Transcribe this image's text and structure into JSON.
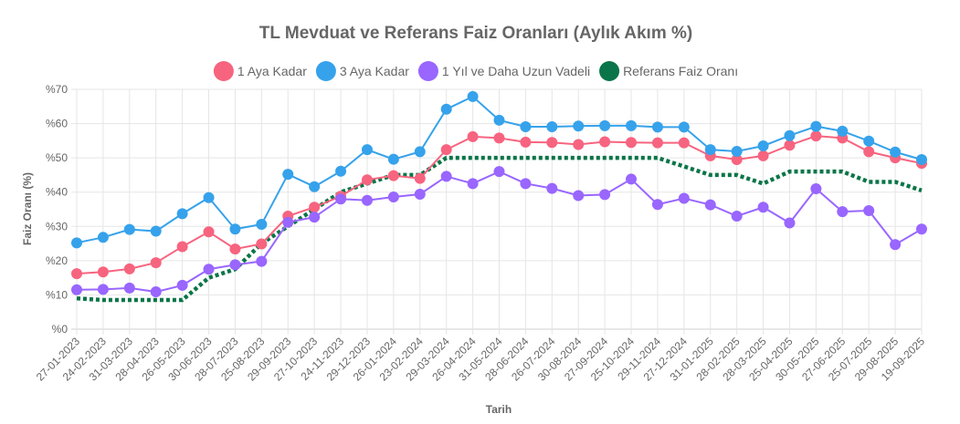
{
  "chart_data": {
    "type": "line",
    "title": "TL Mevduat ve Referans Faiz Oranları (Aylık Akım %)",
    "xlabel": "Tarih",
    "ylabel": "Faiz Oranı (%)",
    "ylim": [
      0,
      70
    ],
    "yticks": [
      "%0",
      "%10",
      "%20",
      "%30",
      "%40",
      "%50",
      "%60",
      "%70"
    ],
    "grid": true,
    "legend_position": "top",
    "x": [
      "27-01-2023",
      "24-02-2023",
      "31-03-2023",
      "28-04-2023",
      "26-05-2023",
      "30-06-2023",
      "28-07-2023",
      "25-08-2023",
      "29-09-2023",
      "27-10-2023",
      "24-11-2023",
      "29-12-2023",
      "26-01-2024",
      "23-02-2024",
      "29-03-2024",
      "26-04-2024",
      "31-05-2024",
      "28-06-2024",
      "26-07-2024",
      "30-08-2024",
      "27-09-2024",
      "25-10-2024",
      "29-11-2024",
      "27-12-2024",
      "31-01-2025",
      "28-02-2025",
      "28-03-2025",
      "25-04-2025",
      "30-05-2025",
      "27-06-2025",
      "25-07-2025",
      "29-08-2025",
      "19-09-2025"
    ],
    "series": [
      {
        "name": "1 Aya Kadar",
        "color": "#f7647f",
        "style": "solid-markers",
        "values": [
          16.2,
          16.7,
          17.6,
          19.4,
          24.1,
          28.4,
          23.4,
          24.9,
          33.0,
          35.6,
          38.8,
          43.6,
          44.8,
          44.0,
          52.4,
          56.2,
          55.8,
          54.6,
          54.5,
          53.9,
          54.7,
          54.5,
          54.4,
          54.4,
          50.6,
          49.5,
          50.6,
          53.7,
          56.4,
          55.8,
          51.8,
          50.0,
          48.4
        ]
      },
      {
        "name": "3 Aya Kadar",
        "color": "#36a2eb",
        "style": "solid-markers",
        "values": [
          25.2,
          26.8,
          29.1,
          28.6,
          33.7,
          38.4,
          29.2,
          30.6,
          45.2,
          41.6,
          46.1,
          52.4,
          49.6,
          51.8,
          64.2,
          67.9,
          61.0,
          59.1,
          59.1,
          59.3,
          59.4,
          59.4,
          59.0,
          59.0,
          52.4,
          51.9,
          53.5,
          56.5,
          59.2,
          57.8,
          54.9,
          51.7,
          49.5
        ]
      },
      {
        "name": "1 Yıl ve Daha Uzun Vadeli",
        "color": "#9966ff",
        "style": "solid-markers",
        "values": [
          11.5,
          11.6,
          12.0,
          10.9,
          12.8,
          17.5,
          18.8,
          19.8,
          31.2,
          32.7,
          38.0,
          37.6,
          38.6,
          39.4,
          44.6,
          42.5,
          46.0,
          42.5,
          41.1,
          39.0,
          39.3,
          43.8,
          36.4,
          38.2,
          36.3,
          33.0,
          35.6,
          31.0,
          41.0,
          34.3,
          34.6,
          24.7,
          29.2
        ]
      },
      {
        "name": "Referans Faiz Oranı",
        "color": "#0a7548",
        "style": "dashed",
        "values": [
          9.0,
          8.5,
          8.5,
          8.5,
          8.5,
          15.0,
          17.5,
          25.0,
          30.0,
          35.0,
          40.0,
          42.5,
          45.0,
          45.0,
          50.0,
          50.0,
          50.0,
          50.0,
          50.0,
          50.0,
          50.0,
          50.0,
          50.0,
          47.5,
          45.0,
          45.0,
          42.5,
          46.0,
          46.0,
          46.0,
          43.0,
          43.0,
          40.5
        ]
      }
    ]
  }
}
